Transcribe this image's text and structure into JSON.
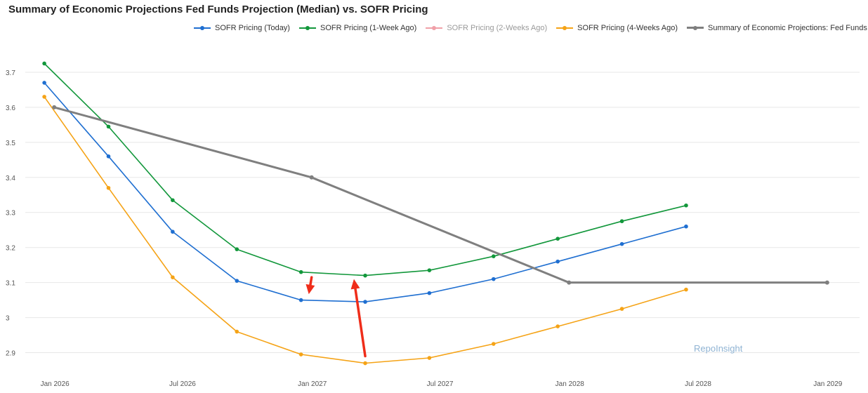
{
  "chart_data": {
    "type": "line",
    "title": "Summary of Economic Projections Fed Funds Projection (Median) vs. SOFR Pricing",
    "xlabel": "",
    "ylabel": "",
    "x_ticks": [
      "Jan 2026",
      "Jul 2026",
      "Jan 2027",
      "Jul 2027",
      "Jan 2028",
      "Jul 2028",
      "Jan 2029"
    ],
    "y_ticks": [
      "2.9",
      "3",
      "3.1",
      "3.2",
      "3.3",
      "3.4",
      "3.5",
      "3.6",
      "3.7"
    ],
    "y_tick_values": [
      2.9,
      3.0,
      3.1,
      3.2,
      3.3,
      3.4,
      3.5,
      3.6,
      3.7
    ],
    "xlim": [
      "2025-11-20",
      "2029-02-15"
    ],
    "ylim": [
      2.845,
      3.79
    ],
    "grid": true,
    "legend_position": "top",
    "series": [
      {
        "name": "SOFR Pricing (Today)",
        "color": "#1f6fd1",
        "x": [
          "2025-12-17",
          "2026-03-18",
          "2026-06-17",
          "2026-09-16",
          "2026-12-16",
          "2027-03-17",
          "2027-06-16",
          "2027-09-15",
          "2027-12-15",
          "2028-03-15",
          "2028-06-14"
        ],
        "values": [
          3.67,
          3.46,
          3.245,
          3.105,
          3.05,
          3.045,
          3.07,
          3.11,
          3.16,
          3.21,
          3.26
        ]
      },
      {
        "name": "SOFR Pricing (1-Week Ago)",
        "color": "#12973b",
        "x": [
          "2025-12-17",
          "2026-03-18",
          "2026-06-17",
          "2026-09-16",
          "2026-12-16",
          "2027-03-17",
          "2027-06-16",
          "2027-09-15",
          "2027-12-15",
          "2028-03-15",
          "2028-06-14"
        ],
        "values": [
          3.725,
          3.545,
          3.335,
          3.195,
          3.13,
          3.12,
          3.135,
          3.175,
          3.225,
          3.275,
          3.32
        ]
      },
      {
        "name": "SOFR Pricing (2-Weeks Ago)",
        "color": "#f0a0a8",
        "hidden": true,
        "x": [],
        "values": []
      },
      {
        "name": "SOFR Pricing (4-Weeks Ago)",
        "color": "#f5a316",
        "x": [
          "2025-12-17",
          "2026-03-18",
          "2026-06-17",
          "2026-09-16",
          "2026-12-16",
          "2027-03-17",
          "2027-06-16",
          "2027-09-15",
          "2027-12-15",
          "2028-03-15",
          "2028-06-14"
        ],
        "values": [
          3.63,
          3.37,
          3.115,
          2.96,
          2.895,
          2.87,
          2.885,
          2.925,
          2.975,
          3.025,
          3.08
        ]
      },
      {
        "name": "Summary of Economic Projections: Fed Funds Rate",
        "color": "#7f7f7f",
        "x": [
          "2025-12-31",
          "2026-12-31",
          "2027-12-31",
          "2028-12-31"
        ],
        "values": [
          3.6,
          3.4,
          3.1,
          3.1
        ]
      }
    ],
    "annotations": [
      {
        "type": "arrow",
        "color": "#ef2d1a",
        "from": [
          "2026-12-31",
          3.115
        ],
        "to": [
          "2026-12-27",
          3.067
        ]
      },
      {
        "type": "arrow",
        "color": "#ef2d1a",
        "from": [
          "2027-03-17",
          2.89
        ],
        "to": [
          "2027-03-01",
          3.11
        ]
      }
    ],
    "watermark": "RepoInsight"
  }
}
